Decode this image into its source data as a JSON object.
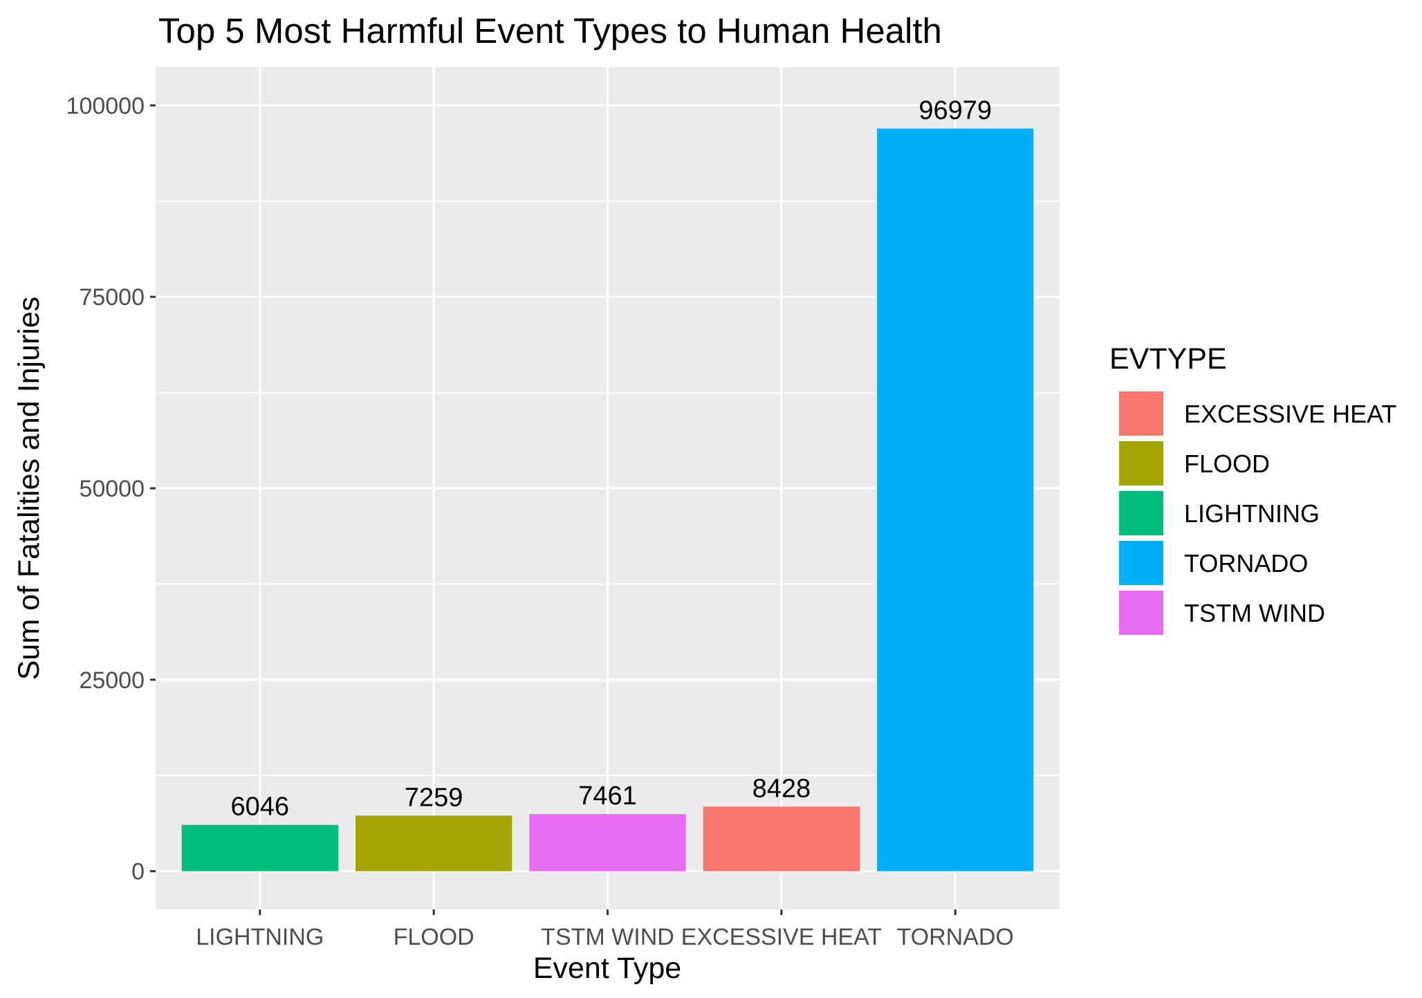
{
  "chart_data": {
    "type": "bar",
    "title": "Top 5 Most Harmful Event Types to Human Health",
    "xlabel": "Event Type",
    "ylabel": "Sum of Fatalities and Injuries",
    "categories": [
      "LIGHTNING",
      "FLOOD",
      "TSTM WIND",
      "EXCESSIVE HEAT",
      "TORNADO"
    ],
    "values": [
      6046,
      7259,
      7461,
      8428,
      96979
    ],
    "bar_labels": [
      "6046",
      "7259",
      "7461",
      "8428",
      "96979"
    ],
    "colors": [
      "#00BF7D",
      "#A3A500",
      "#E76BF3",
      "#F8766D",
      "#00B0F6"
    ],
    "ylim": [
      -5000,
      105000
    ],
    "yticks": [
      0,
      25000,
      50000,
      75000,
      100000
    ],
    "ytick_labels": [
      "0",
      "25000",
      "50000",
      "75000",
      "100000"
    ],
    "grid": true,
    "panel_background": "#EBEBEB",
    "legend": {
      "title": "EVTYPE",
      "placement": "right",
      "items": [
        {
          "label": "EXCESSIVE HEAT",
          "color": "#F8766D"
        },
        {
          "label": "FLOOD",
          "color": "#A3A500"
        },
        {
          "label": "LIGHTNING",
          "color": "#00BF7D"
        },
        {
          "label": "TORNADO",
          "color": "#00B0F6"
        },
        {
          "label": "TSTM WIND",
          "color": "#E76BF3"
        }
      ]
    }
  }
}
